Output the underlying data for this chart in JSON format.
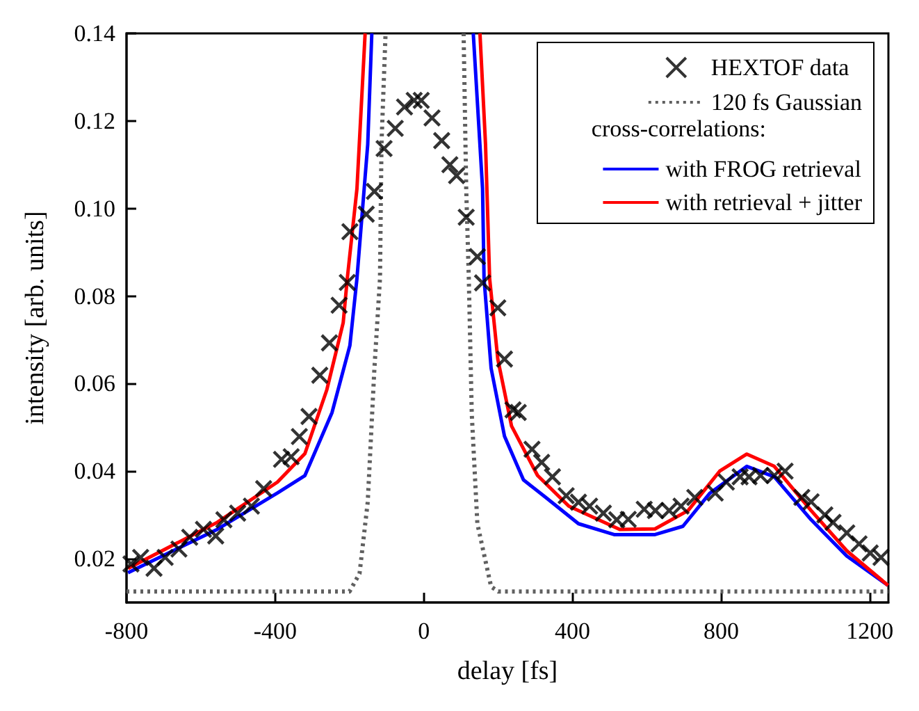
{
  "chart_data": {
    "type": "line",
    "xlabel": "delay [fs]",
    "ylabel": "intensity [arb. units]",
    "xlim": [
      -800,
      1250
    ],
    "xticks": [
      -800,
      -400,
      0,
      400,
      800,
      1200
    ],
    "ylim": [
      0.01,
      0.14
    ],
    "yticks": [
      0.02,
      0.04,
      0.06,
      0.08,
      {
        "value": 0.1,
        "label": "0.10"
      },
      0.12,
      0.14
    ],
    "legend": "top right",
    "annotations": [
      "cross-correlations:"
    ],
    "series": [
      {
        "name": "HEXTOF data",
        "type": "scatter",
        "marker": "cross",
        "color": "#000000",
        "x": [
          -788,
          -762,
          -726,
          -696,
          -659,
          -630,
          -593,
          -560,
          -538,
          -501,
          -464,
          -431,
          -383,
          -357,
          -335,
          -309,
          -280,
          -254,
          -228,
          -206,
          -199,
          -155,
          -133,
          -107,
          -77,
          -52,
          -26,
          -7,
          22,
          48,
          70,
          88,
          114,
          144,
          158,
          199,
          217,
          240,
          254,
          291,
          317,
          346,
          383,
          416,
          446,
          483,
          519,
          550,
          593,
          623,
          660,
          692,
          729,
          784,
          814,
          851,
          875,
          906,
          943,
          972,
          1017,
          1042,
          1079,
          1101,
          1138,
          1171,
          1201,
          1230
        ],
        "values": [
          0.0188,
          0.0203,
          0.0178,
          0.0203,
          0.0222,
          0.0249,
          0.0267,
          0.0252,
          0.0289,
          0.0304,
          0.032,
          0.036,
          0.0427,
          0.0433,
          0.0479,
          0.0525,
          0.0619,
          0.0693,
          0.0779,
          0.0831,
          0.0947,
          0.0987,
          0.1039,
          0.1137,
          0.1183,
          0.1232,
          0.1247,
          0.1247,
          0.1207,
          0.1155,
          0.11,
          0.1075,
          0.098,
          0.089,
          0.083,
          0.0773,
          0.0656,
          0.054,
          0.0534,
          0.045,
          0.042,
          0.0387,
          0.0344,
          0.0329,
          0.032,
          0.0304,
          0.0289,
          0.029,
          0.0313,
          0.031,
          0.031,
          0.032,
          0.034,
          0.035,
          0.0375,
          0.0387,
          0.0387,
          0.039,
          0.039,
          0.04,
          0.034,
          0.033,
          0.03,
          0.0283,
          0.0259,
          0.0234,
          0.0213,
          0.0203
        ]
      },
      {
        "name": "120 fs Gaussian",
        "line_style": "dotted",
        "color": "#606060",
        "x": [
          -800,
          -200,
          -173,
          -151,
          -133,
          -118,
          -114,
          -103,
          0,
          107,
          114,
          121,
          129,
          144,
          181,
          200,
          1250
        ],
        "values": [
          0.0125,
          0.0125,
          0.0166,
          0.0329,
          0.0635,
          0.084,
          0.1146,
          0.14,
          null,
          0.14,
          0.1045,
          0.084,
          0.053,
          0.028,
          0.0136,
          0.0125,
          0.0125
        ]
      },
      {
        "name": "with FROG retrieval",
        "color": "#0000ff",
        "x": [
          -796,
          -556,
          -394,
          -320,
          -247,
          -199,
          -180,
          -151,
          -140,
          0,
          133,
          158,
          162,
          181,
          217,
          268,
          328,
          416,
          512,
          622,
          697,
          770,
          869,
          943,
          1042,
          1138,
          1249
        ],
        "values": [
          0.0168,
          0.0267,
          0.035,
          0.039,
          0.0534,
          0.0687,
          0.084,
          0.1146,
          0.14,
          null,
          0.14,
          0.1045,
          0.084,
          0.0635,
          0.048,
          0.038,
          0.034,
          0.028,
          0.0255,
          0.0255,
          0.0274,
          0.035,
          0.0411,
          0.0387,
          0.0289,
          0.0206,
          0.0139
        ]
      },
      {
        "name": "with retrieval + jitter",
        "color": "#ff0000",
        "x": [
          -796,
          -556,
          -394,
          -320,
          -261,
          -217,
          -206,
          -180,
          -158,
          0,
          151,
          166,
          177,
          199,
          236,
          306,
          390,
          527,
          622,
          711,
          796,
          869,
          943,
          1042,
          1138,
          1249
        ],
        "values": [
          0.0178,
          0.0283,
          0.0375,
          0.044,
          0.0586,
          0.0739,
          0.084,
          0.1045,
          0.14,
          null,
          0.14,
          0.1146,
          0.084,
          0.0656,
          0.0503,
          0.039,
          0.032,
          0.0267,
          0.0268,
          0.031,
          0.04,
          0.0439,
          0.0411,
          0.031,
          0.0218,
          0.0139
        ]
      }
    ]
  }
}
